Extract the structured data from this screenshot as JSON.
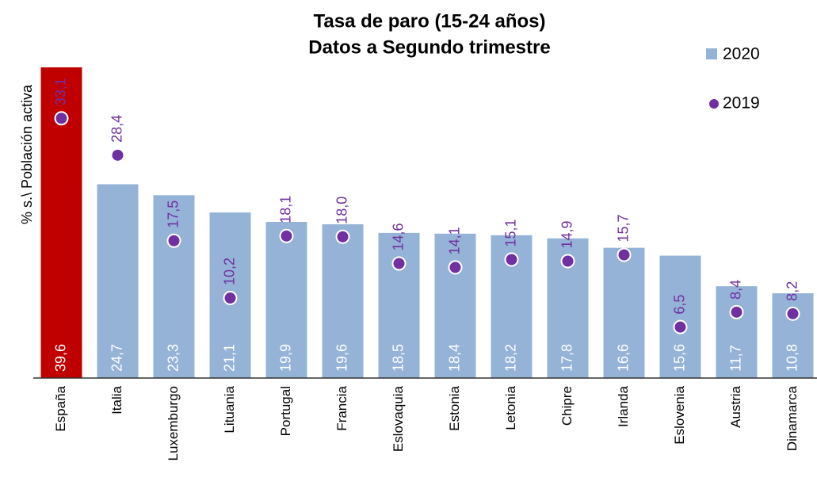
{
  "chart_data": {
    "type": "bar",
    "title": "Tasa de paro (15-24 años)",
    "subtitle": "Datos a Segundo trimestre",
    "y_label": "% s.\\ Población activa",
    "categories": [
      "España",
      "Italia",
      "Luxemburgo",
      "Lituania",
      "Portugal",
      "Francia",
      "Eslovaquia",
      "Estonia",
      "Letonia",
      "Chipre",
      "Irlanda",
      "Eslovenia",
      "Austria",
      "Dinamarca"
    ],
    "ylim": [
      0,
      40
    ],
    "legend": "top-right",
    "series": [
      {
        "name": "2020",
        "color": "#95b3d7",
        "colors": [
          "#c00000",
          "#95b3d7",
          "#95b3d7",
          "#95b3d7",
          "#95b3d7",
          "#95b3d7",
          "#95b3d7",
          "#95b3d7",
          "#95b3d7",
          "#95b3d7",
          "#95b3d7",
          "#95b3d7",
          "#95b3d7",
          "#95b3d7"
        ],
        "values": [
          39.6,
          24.7,
          23.3,
          21.1,
          19.9,
          19.6,
          18.5,
          18.4,
          18.2,
          17.8,
          16.6,
          15.6,
          11.7,
          10.8
        ],
        "value_labels": [
          "39,6",
          "24,7",
          "23,3",
          "21,1",
          "19,9",
          "19,6",
          "18,5",
          "18,4",
          "18,2",
          "17,8",
          "16,6",
          "15,6",
          "11,7",
          "10,8"
        ]
      },
      {
        "name": "2019",
        "color": "#7030a0",
        "marker": "dot",
        "values": [
          33.1,
          28.4,
          17.5,
          10.2,
          18.1,
          18.0,
          14.6,
          14.1,
          15.1,
          14.9,
          15.7,
          6.5,
          8.4,
          8.2
        ],
        "value_labels": [
          "33,1",
          "28,4",
          "17,5",
          "10,2",
          "18,1",
          "18,0",
          "14,6",
          "14,1",
          "15,1",
          "14,9",
          "15,7",
          "6,5",
          "8,4",
          "8,2"
        ]
      }
    ]
  }
}
